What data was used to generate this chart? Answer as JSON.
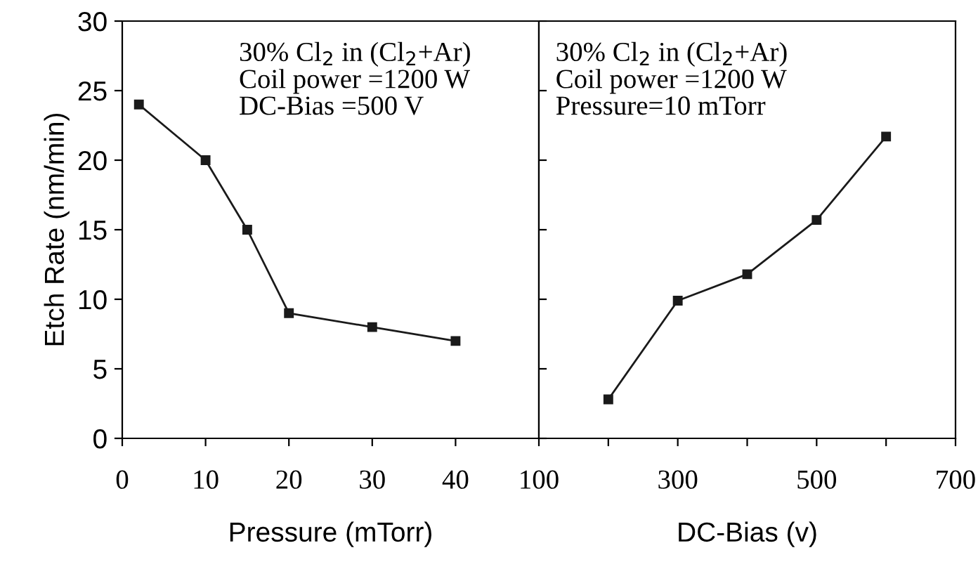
{
  "chart_data": [
    {
      "type": "line",
      "xlabel": "Pressure (mTorr)",
      "ylabel": "Etch Rate (nm/min)",
      "x": [
        2,
        10,
        15,
        20,
        30,
        40
      ],
      "series": [
        {
          "color": "#1a1a1a",
          "values": [
            24,
            20,
            15,
            9,
            8,
            7
          ]
        }
      ],
      "xlim": [
        0,
        50
      ],
      "xticks": [
        0,
        10,
        20,
        30,
        40
      ],
      "ylim": [
        0,
        30
      ],
      "yticks": [
        0,
        5,
        10,
        15,
        20,
        25,
        30
      ],
      "marker": "square",
      "line_style": "solid",
      "grid": false,
      "legend": false,
      "annotations": [
        "30% Cl$_{2}$ in (Cl$_{2}$+Ar)\nCoil power =1200 W\nDC-Bias =500 V"
      ]
    },
    {
      "type": "line",
      "xlabel": "DC-Bias (v)",
      "x": [
        200,
        300,
        400,
        500,
        600
      ],
      "series": [
        {
          "color": "#1a1a1a",
          "values": [
            2.8,
            9.9,
            11.8,
            15.7,
            21.7
          ]
        }
      ],
      "xlim": [
        100,
        700
      ],
      "xticks": [
        100,
        {
          "value": 200,
          "label": null
        },
        300,
        {
          "value": 400,
          "label": null
        },
        500,
        {
          "value": 600,
          "label": null
        },
        700
      ],
      "ylim": [
        0,
        30
      ],
      "yticks": [
        0,
        5,
        10,
        15,
        20,
        25,
        30
      ],
      "tick_labels": "x",
      "marker": "square",
      "line_style": "solid",
      "grid": false,
      "legend": false,
      "annotations": [
        "30% Cl$_{2}$ in (Cl$_{2}$+Ar)\nCoil power =1200 W\nPressure=10 mTorr"
      ]
    }
  ]
}
